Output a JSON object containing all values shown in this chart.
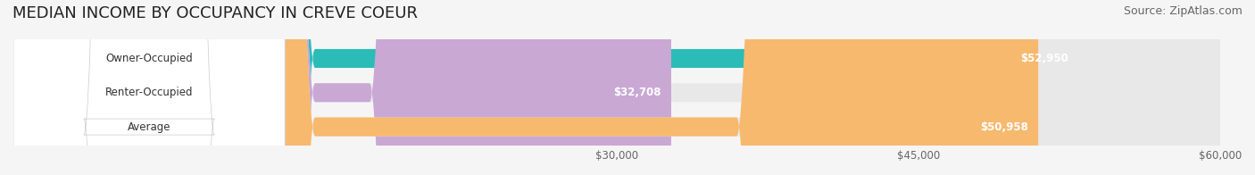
{
  "title": "MEDIAN INCOME BY OCCUPANCY IN CREVE COEUR",
  "source": "Source: ZipAtlas.com",
  "categories": [
    "Owner-Occupied",
    "Renter-Occupied",
    "Average"
  ],
  "values": [
    52950,
    32708,
    50958
  ],
  "bar_colors": [
    "#2bbcb8",
    "#c9a8d4",
    "#f7b96e"
  ],
  "label_colors": [
    "#ffffff",
    "#555555",
    "#ffffff"
  ],
  "value_labels": [
    "$52,950",
    "$32,708",
    "$50,958"
  ],
  "xmin": 0,
  "xmax": 60000,
  "xticks": [
    30000,
    45000,
    60000
  ],
  "xtick_labels": [
    "$30,000",
    "$45,000",
    "$60,000"
  ],
  "background_color": "#f5f5f5",
  "bar_bg_color": "#e8e8e8",
  "title_fontsize": 13,
  "source_fontsize": 9,
  "bar_height": 0.55,
  "figsize": [
    14.06,
    1.96
  ],
  "dpi": 100
}
